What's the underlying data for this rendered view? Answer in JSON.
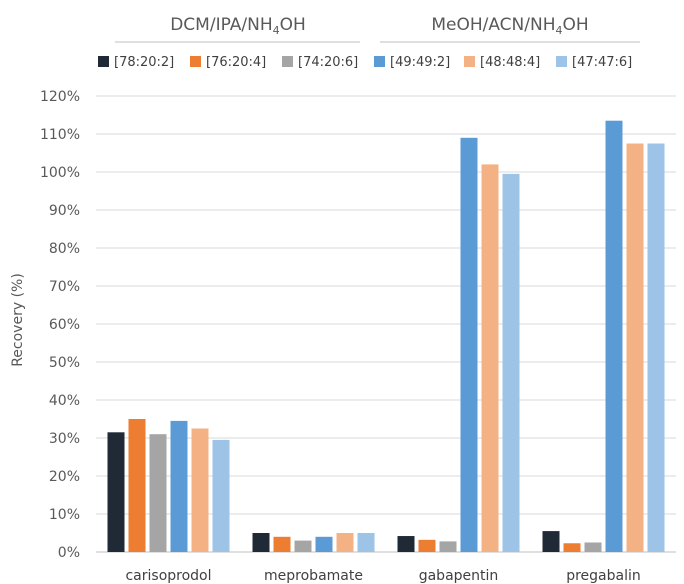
{
  "chart_data": {
    "type": "bar",
    "group_headers": [
      {
        "text": "DCM/IPA/NH",
        "sub": "4",
        "tail": "OH"
      },
      {
        "text": "MeOH/ACN/NH",
        "sub": "4",
        "tail": "OH"
      }
    ],
    "ylabel": "Recovery (%)",
    "ylim": [
      0,
      120
    ],
    "y_ticks": [
      {
        "value": 0,
        "label": "0%"
      },
      {
        "value": 10,
        "label": "10%"
      },
      {
        "value": 20,
        "label": "20%"
      },
      {
        "value": 30,
        "label": "30%"
      },
      {
        "value": 40,
        "label": "40%"
      },
      {
        "value": 50,
        "label": "50%"
      },
      {
        "value": 60,
        "label": "60%"
      },
      {
        "value": 70,
        "label": "70%"
      },
      {
        "value": 80,
        "label": "80%"
      },
      {
        "value": 90,
        "label": "90%"
      },
      {
        "value": 100,
        "label": "100%"
      },
      {
        "value": 110,
        "label": "110%"
      },
      {
        "value": 120,
        "label": "120%"
      }
    ],
    "grid": true,
    "legend_position": "top",
    "categories": [
      "carisoprodol",
      "meprobamate",
      "gabapentin",
      "pregabalin"
    ],
    "series": [
      {
        "name": "[78:20:2]",
        "color": "#1f2a36",
        "values": [
          31.5,
          5,
          4.2,
          5.5
        ]
      },
      {
        "name": "[76:20:4]",
        "color": "#ed7d31",
        "values": [
          35,
          4,
          3.2,
          2.3
        ]
      },
      {
        "name": "[74:20:6]",
        "color": "#a5a5a5",
        "values": [
          31,
          3,
          2.8,
          2.5
        ]
      },
      {
        "name": "[49:49:2]",
        "color": "#5b9bd5",
        "values": [
          34.5,
          4,
          109,
          113.5
        ]
      },
      {
        "name": "[48:48:4]",
        "color": "#f4b183",
        "values": [
          32.5,
          5,
          102,
          107.5
        ]
      },
      {
        "name": "[47:47:6]",
        "color": "#9dc3e6",
        "values": [
          29.5,
          5,
          99.5,
          107.5
        ]
      }
    ]
  }
}
